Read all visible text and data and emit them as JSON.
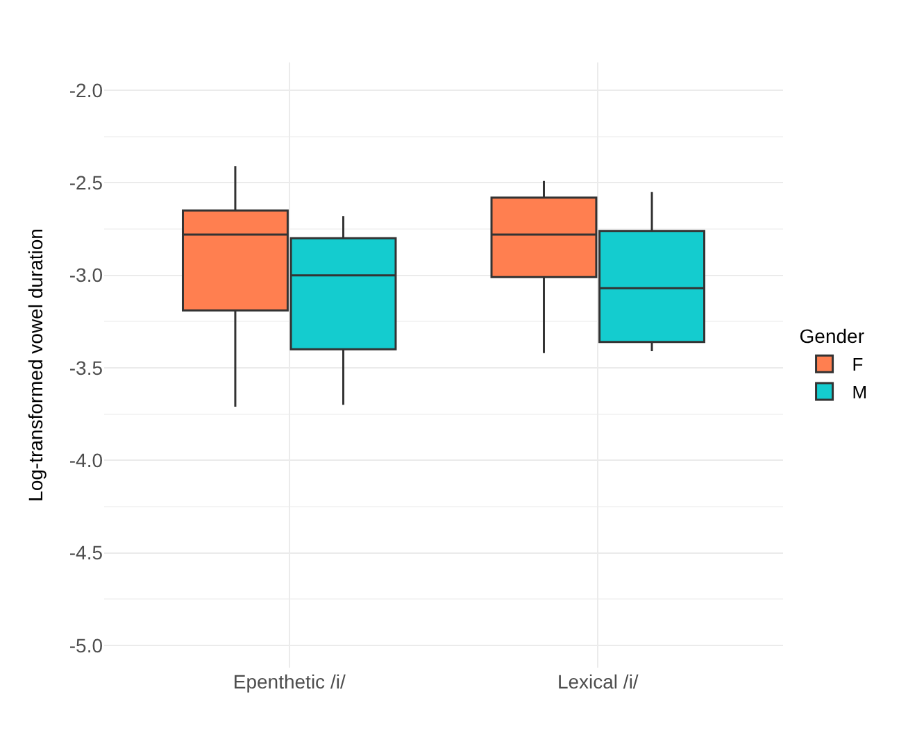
{
  "chart_data": {
    "type": "box",
    "ylabel": "Log-transformed vowel duration",
    "legend_title": "Gender",
    "categories": [
      "Epenthetic /i/",
      "Lexical /i/"
    ],
    "series": [
      {
        "name": "F",
        "color": "#ff7f50",
        "boxes": [
          {
            "low": -3.71,
            "q1": -3.19,
            "median": -2.78,
            "q3": -2.65,
            "high": -2.41
          },
          {
            "low": -3.42,
            "q1": -3.01,
            "median": -2.78,
            "q3": -2.58,
            "high": -2.49
          }
        ]
      },
      {
        "name": "M",
        "color": "#14cccf",
        "boxes": [
          {
            "low": -3.7,
            "q1": -3.4,
            "median": -3.0,
            "q3": -2.8,
            "high": -2.68
          },
          {
            "low": -3.41,
            "q1": -3.36,
            "median": -3.07,
            "q3": -2.76,
            "high": -2.55
          }
        ]
      }
    ],
    "ylim": [
      -5.12,
      -1.85
    ],
    "yticks": [
      {
        "value": -5.0,
        "label": "-5.0"
      },
      {
        "value": -4.75,
        "label": null
      },
      {
        "value": -4.5,
        "label": "-4.5"
      },
      {
        "value": -4.25,
        "label": null
      },
      {
        "value": -4.0,
        "label": "-4.0"
      },
      {
        "value": -3.75,
        "label": null
      },
      {
        "value": -3.5,
        "label": "-3.5"
      },
      {
        "value": -3.25,
        "label": null
      },
      {
        "value": -3.0,
        "label": "-3.0"
      },
      {
        "value": -2.75,
        "label": null
      },
      {
        "value": -2.5,
        "label": "-2.5"
      },
      {
        "value": -2.25,
        "label": null
      },
      {
        "value": -2.0,
        "label": "-2.0"
      }
    ],
    "grid": true,
    "legend": "right"
  }
}
